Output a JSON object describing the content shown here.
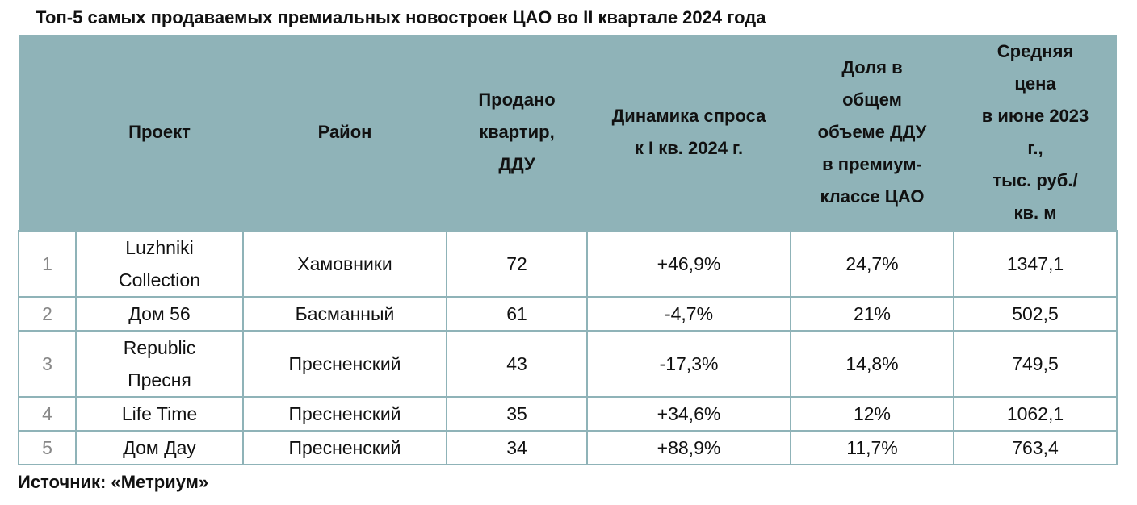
{
  "title": "Топ-5 самых продаваемых премиальных новостроек ЦАО во II квартале 2024 года",
  "headers": [
    "",
    "Проект",
    "Район",
    "Продано квартир, ДДУ",
    "Динамика спроса к I кв. 2024 г.",
    "Доля в общем объеме ДДУ в премиум-классе ЦАО",
    "Средняя цена в июне 2023 г., тыс. руб./ кв. м"
  ],
  "header_lines": [
    [],
    [
      "Проект"
    ],
    [
      "Район"
    ],
    [
      "Продано",
      "квартир,",
      "ДДУ"
    ],
    [
      "Динамика спроса",
      "к I кв. 2024 г."
    ],
    [
      "Доля в",
      "общем",
      "объеме ДДУ",
      "в премиум-",
      "классе ЦАО"
    ],
    [
      "Средняя",
      "цена",
      "в июне 2023",
      "г.,",
      "тыс. руб./",
      "кв. м"
    ]
  ],
  "rows": [
    {
      "n": "1",
      "project": [
        "Luzhniki",
        "Collection"
      ],
      "district": "Хамовники",
      "sold": "72",
      "dynamics": "+46,9%",
      "share": "24,7%",
      "price": "1347,1"
    },
    {
      "n": "2",
      "project": [
        "Дом 56"
      ],
      "district": "Басманный",
      "sold": "61",
      "dynamics": "-4,7%",
      "share": "21%",
      "price": "502,5"
    },
    {
      "n": "3",
      "project": [
        "Republic",
        "Пресня"
      ],
      "district": "Пресненский",
      "sold": "43",
      "dynamics": "-17,3%",
      "share": "14,8%",
      "price": "749,5"
    },
    {
      "n": "4",
      "project": [
        "Life Time"
      ],
      "district": "Пресненский",
      "sold": "35",
      "dynamics": "+34,6%",
      "share": "12%",
      "price": "1062,1"
    },
    {
      "n": "5",
      "project": [
        "Дом Дау"
      ],
      "district": "Пресненский",
      "sold": "34",
      "dynamics": "+88,9%",
      "share": "11,7%",
      "price": "763,4"
    }
  ],
  "source": "Источник: «Метриум»"
}
